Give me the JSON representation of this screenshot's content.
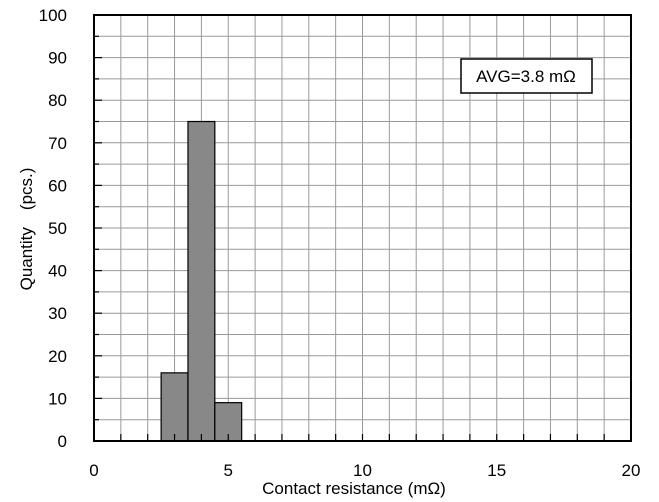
{
  "chart_data": {
    "type": "bar",
    "xlabel": "Contact resistance (mΩ)",
    "ylabel": "Quantity　(pcs.)",
    "xlim": [
      0,
      20
    ],
    "ylim": [
      0,
      100
    ],
    "x_ticks": [
      0,
      5,
      10,
      15,
      20
    ],
    "y_ticks": [
      0,
      10,
      20,
      30,
      40,
      50,
      60,
      70,
      80,
      90,
      100
    ],
    "grid": true,
    "bar_color": "#888888",
    "bins": [
      {
        "start": 2.5,
        "end": 3.5,
        "value": 16
      },
      {
        "start": 3.5,
        "end": 4.5,
        "value": 75
      },
      {
        "start": 4.5,
        "end": 5.5,
        "value": 9
      }
    ],
    "annotation": "AVG=3.8 mΩ"
  }
}
